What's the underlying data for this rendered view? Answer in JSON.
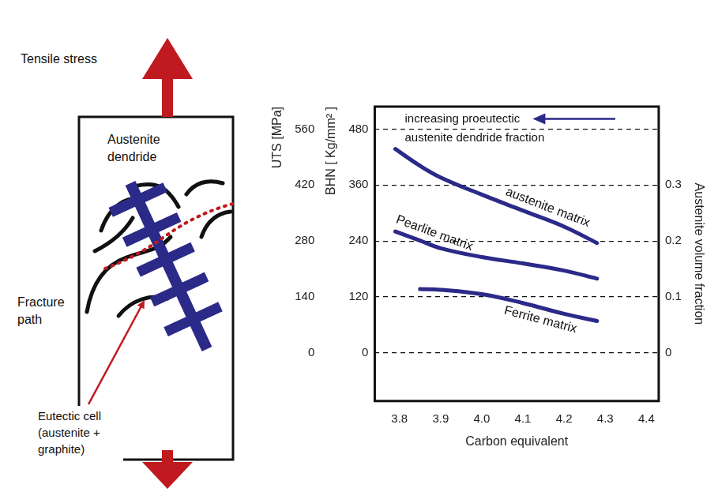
{
  "chart_data": {
    "type": "line",
    "x_label": "Carbon equivalent",
    "y_label": "UTS [MPa]",
    "y3_label": "BHN [ Kg/mm² ]",
    "y2_label": "Austenite volume fraction",
    "xlim": [
      3.74,
      4.43
    ],
    "xticks": [
      3.8,
      3.9,
      {
        "value": 4,
        "label": "4.0"
      },
      4.1,
      4.2,
      4.3,
      4.4
    ],
    "ylim": [
      -120,
      616
    ],
    "yticks": [
      0,
      140,
      280,
      420,
      560
    ],
    "y3lim": [
      -102.9,
      528
    ],
    "y3ticks": [
      0,
      120,
      240,
      360,
      480
    ],
    "y2lim": [
      -0.0857,
      0.44
    ],
    "y2ticks": [
      0,
      0.1,
      0.2,
      0.3
    ],
    "grid": true,
    "annotations": [
      {
        "text": "increasing proeutectic"
      },
      {
        "text": "austenite dendride fraction"
      }
    ],
    "series": [
      {
        "name": "austenite matrix",
        "color": "#2b2a88",
        "line_style": "solid",
        "x": [
          3.79,
          3.85,
          3.9,
          4.0,
          4.1,
          4.2,
          4.28
        ],
        "values": [
          510,
          468,
          439,
          396,
          356,
          316,
          275
        ]
      },
      {
        "name": "Pearlite matrix",
        "color": "#2b2a88",
        "line_style": "solid",
        "x": [
          3.79,
          3.85,
          3.9,
          4.0,
          4.1,
          4.2,
          4.28
        ],
        "values": [
          304,
          281,
          262,
          240,
          224,
          206,
          186
        ]
      },
      {
        "name": "Ferrite matrix",
        "color": "#2b2a88",
        "line_style": "solid",
        "x": [
          3.85,
          3.9,
          4.0,
          4.1,
          4.2,
          4.28
        ],
        "values": [
          160,
          158,
          147,
          125,
          98,
          80
        ]
      }
    ]
  },
  "diagram": {
    "tensile_stress": "Tensile stress",
    "dendrite": [
      "Austenite",
      "dendride"
    ],
    "fracture_path": [
      "Fracture",
      "path"
    ],
    "eutectic_cell": [
      "Eutectic cell",
      "(austenite +",
      "graphite)"
    ]
  }
}
